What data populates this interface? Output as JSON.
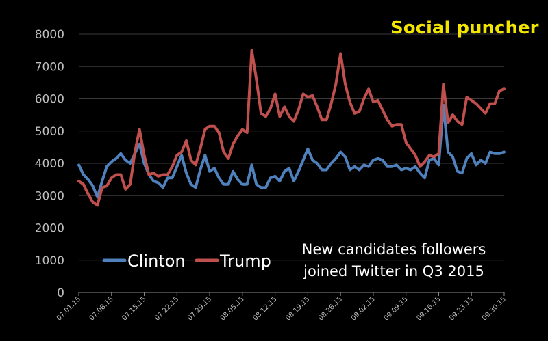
{
  "brand": {
    "name": "Social puncher",
    "color": "#f2e600"
  },
  "chart_data": {
    "type": "line",
    "title": "New candidates followers joined Twitter in Q3 2015",
    "title_lines": [
      "New candidates followers",
      "joined Twitter in Q3 2015"
    ],
    "xlabel": "",
    "ylabel": "",
    "ylim": [
      0,
      8000
    ],
    "yticks": [
      0,
      1000,
      2000,
      3000,
      4000,
      5000,
      6000,
      7000,
      8000
    ],
    "grid": true,
    "legend_position": "bottom-left",
    "x_tick_labels": [
      "07.01.15",
      "07.08.15",
      "07.15.15",
      "07.22.15",
      "07.29.15",
      "08.05.15",
      "08.12.15",
      "08.19.15",
      "08.26.15",
      "09.02.15",
      "09.09.15",
      "09.16.15",
      "09.23.15",
      "09.30.15"
    ],
    "x_tick_every": 7,
    "series": [
      {
        "name": "Clinton",
        "color": "#4f81bd",
        "values": [
          3950,
          3650,
          3500,
          3300,
          2950,
          3450,
          3900,
          4050,
          4150,
          4300,
          4100,
          4000,
          4300,
          4600,
          4000,
          3650,
          3450,
          3400,
          3250,
          3550,
          3550,
          3900,
          4250,
          3700,
          3350,
          3250,
          3800,
          4250,
          3750,
          3850,
          3550,
          3350,
          3350,
          3750,
          3500,
          3350,
          3350,
          3950,
          3350,
          3250,
          3250,
          3550,
          3600,
          3450,
          3750,
          3850,
          3450,
          3750,
          4100,
          4450,
          4100,
          4000,
          3800,
          3800,
          4000,
          4150,
          4350,
          4200,
          3800,
          3900,
          3800,
          3950,
          3900,
          4100,
          4150,
          4100,
          3900,
          3900,
          3950,
          3800,
          3850,
          3800,
          3900,
          3700,
          3550,
          4100,
          4150,
          3950,
          5800,
          4350,
          4200,
          3750,
          3700,
          4150,
          4300,
          3950,
          4100,
          4000,
          4350,
          4300,
          4300,
          4350
        ]
      },
      {
        "name": "Trump",
        "color": "#c0504d",
        "values": [
          3450,
          3350,
          3050,
          2800,
          2700,
          3250,
          3300,
          3550,
          3650,
          3650,
          3200,
          3350,
          4350,
          5050,
          4250,
          3650,
          3700,
          3600,
          3650,
          3650,
          3900,
          4250,
          4350,
          4700,
          4100,
          3950,
          4450,
          5050,
          5150,
          5150,
          4950,
          4350,
          4150,
          4600,
          4850,
          5050,
          4950,
          7500,
          6600,
          5550,
          5450,
          5700,
          6150,
          5450,
          5750,
          5450,
          5300,
          5650,
          6150,
          6050,
          6100,
          5750,
          5350,
          5350,
          5850,
          6450,
          7400,
          6450,
          5900,
          5550,
          5600,
          6000,
          6300,
          5900,
          5950,
          5650,
          5350,
          5150,
          5200,
          5200,
          4650,
          4450,
          4250,
          3900,
          4050,
          4250,
          4200,
          4300,
          6450,
          5250,
          5500,
          5300,
          5200,
          6050,
          5950,
          5850,
          5700,
          5550,
          5850,
          5850,
          6250,
          6300
        ]
      }
    ]
  }
}
